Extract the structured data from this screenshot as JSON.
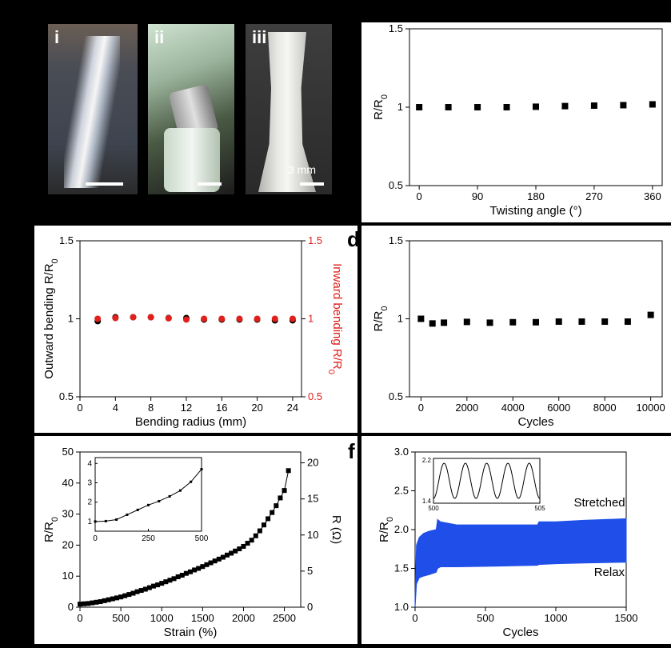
{
  "photos": [
    {
      "label": "i",
      "scale_text": ""
    },
    {
      "label": "ii",
      "scale_text": ""
    },
    {
      "label": "iii",
      "scale_text": "3 mm"
    }
  ],
  "panel_letters": {
    "d": "d",
    "f": "f"
  },
  "colors": {
    "black": "#000000",
    "red": "#e0201b",
    "blue": "#1f4fe8"
  },
  "chart_data": [
    {
      "id": "twisting",
      "type": "scatter",
      "xlabel": "Twisting angle (°)",
      "ylabel": "R/R0",
      "xlim": [
        -15,
        375
      ],
      "ylim": [
        0.5,
        1.5
      ],
      "xticks": [
        0,
        90,
        180,
        270,
        360
      ],
      "yticks": [
        0.5,
        1.0,
        1.5
      ],
      "series": [
        {
          "color": "#000000",
          "marker": "square",
          "x": [
            0,
            45,
            90,
            135,
            180,
            225,
            270,
            315,
            360
          ],
          "y": [
            1.0,
            1.0,
            1.0,
            1.0,
            1.003,
            1.007,
            1.01,
            1.013,
            1.018
          ]
        }
      ]
    },
    {
      "id": "bending",
      "type": "scatter",
      "xlabel": "Bending radius (mm)",
      "ylabel": "Outward bending R/R0",
      "y2label": "Inward bending R/R0",
      "xlim": [
        0,
        25
      ],
      "ylim": [
        0.5,
        1.5
      ],
      "xticks": [
        0,
        4,
        8,
        12,
        16,
        20,
        24
      ],
      "yticks": [
        0.5,
        1.0,
        1.5
      ],
      "series": [
        {
          "color": "#000000",
          "marker": "circle",
          "x": [
            2,
            4,
            6,
            8,
            10,
            12,
            14,
            16,
            18,
            20,
            22,
            24
          ],
          "y": [
            0.985,
            1.01,
            1.01,
            1.01,
            1.005,
            1.005,
            0.995,
            0.995,
            0.995,
            0.995,
            0.99,
            0.99
          ]
        },
        {
          "color": "#e0201b",
          "marker": "circle",
          "x": [
            2,
            4,
            6,
            8,
            10,
            12,
            14,
            16,
            18,
            20,
            22,
            24
          ],
          "y": [
            1.0,
            1.005,
            1.01,
            1.01,
            1.003,
            0.995,
            1.0,
            1.0,
            1.0,
            1.0,
            1.0,
            1.0
          ]
        }
      ]
    },
    {
      "id": "cycles",
      "type": "scatter",
      "xlabel": "Cycles",
      "ylabel": "R/R0",
      "xlim": [
        -500,
        10500
      ],
      "ylim": [
        0.5,
        1.5
      ],
      "xticks": [
        0,
        2000,
        4000,
        6000,
        8000,
        10000
      ],
      "yticks": [
        0.5,
        1.0,
        1.5
      ],
      "series": [
        {
          "color": "#000000",
          "marker": "square",
          "x": [
            0,
            500,
            1000,
            2000,
            3000,
            4000,
            5000,
            6000,
            7000,
            8000,
            9000,
            10000
          ],
          "y": [
            1.0,
            0.97,
            0.975,
            0.98,
            0.975,
            0.978,
            0.978,
            0.982,
            0.982,
            0.982,
            0.982,
            1.025
          ]
        }
      ]
    },
    {
      "id": "strain",
      "type": "line",
      "xlabel": "Strain (%)",
      "ylabel": "R/R0",
      "y2label": "R (Ω)",
      "xlim": [
        0,
        2700
      ],
      "ylim": [
        0,
        50
      ],
      "y2lim": [
        0,
        21.5
      ],
      "xticks": [
        0,
        500,
        1000,
        1500,
        2000,
        2500
      ],
      "yticks": [
        0,
        10,
        20,
        30,
        40,
        50
      ],
      "y2ticks": [
        0,
        5,
        10,
        15,
        20
      ],
      "series": [
        {
          "color": "#000000",
          "marker": "square",
          "x": [
            0,
            50,
            100,
            150,
            200,
            250,
            300,
            350,
            400,
            450,
            500,
            550,
            600,
            650,
            700,
            750,
            800,
            850,
            900,
            950,
            1000,
            1050,
            1100,
            1150,
            1200,
            1250,
            1300,
            1350,
            1400,
            1450,
            1500,
            1550,
            1600,
            1650,
            1700,
            1750,
            1800,
            1850,
            1900,
            1950,
            2000,
            2050,
            2100,
            2150,
            2200,
            2250,
            2300,
            2350,
            2400,
            2450,
            2500,
            2550
          ],
          "y": [
            1.0,
            1.1,
            1.2,
            1.4,
            1.6,
            1.8,
            2.1,
            2.4,
            2.7,
            3.0,
            3.3,
            3.7,
            4.1,
            4.5,
            5.0,
            5.4,
            5.8,
            6.3,
            6.8,
            7.2,
            7.7,
            8.2,
            8.7,
            9.2,
            9.8,
            10.3,
            10.9,
            11.4,
            12.0,
            12.5,
            13.1,
            13.7,
            14.3,
            14.9,
            15.5,
            16.1,
            16.8,
            17.4,
            18.1,
            18.8,
            19.6,
            20.6,
            21.6,
            23.0,
            24.6,
            26.5,
            28.5,
            30.5,
            32.7,
            35.2,
            37.6,
            44.0
          ]
        }
      ],
      "inset": {
        "xlim": [
          0,
          500
        ],
        "ylim": [
          0.5,
          4.3
        ],
        "xticks": [
          0,
          250,
          500
        ],
        "yticks": [
          1,
          2,
          3,
          4
        ],
        "x": [
          0,
          50,
          100,
          150,
          200,
          250,
          300,
          350,
          400,
          450,
          500
        ],
        "y": [
          1.0,
          1.02,
          1.1,
          1.35,
          1.6,
          1.85,
          2.05,
          2.3,
          2.6,
          3.05,
          3.7
        ]
      }
    },
    {
      "id": "dynamic",
      "type": "area",
      "xlabel": "Cycles",
      "ylabel": "R/R0",
      "xlim": [
        0,
        1500
      ],
      "ylim": [
        1.0,
        3.0
      ],
      "xticks": [
        0,
        500,
        1000,
        1500
      ],
      "yticks": [
        1.0,
        1.5,
        2.0,
        2.5,
        3.0
      ],
      "series": [
        {
          "color": "#1f4fe8",
          "x": [
            0,
            10,
            30,
            60,
            100,
            150,
            160,
            180,
            300,
            600,
            870,
            880,
            1000,
            1200,
            1500
          ],
          "upper": [
            1.1,
            1.8,
            1.9,
            1.95,
            1.98,
            2.0,
            2.13,
            2.1,
            2.06,
            2.06,
            2.06,
            2.1,
            2.1,
            2.12,
            2.14
          ],
          "lower": [
            1.0,
            1.3,
            1.38,
            1.4,
            1.42,
            1.45,
            1.5,
            1.52,
            1.52,
            1.53,
            1.54,
            1.55,
            1.56,
            1.57,
            1.58
          ]
        }
      ],
      "annotations": [
        {
          "text": "Stretched",
          "x": 1310,
          "y": 2.3
        },
        {
          "text": "Relax",
          "x": 1380,
          "y": 1.4
        }
      ],
      "inset": {
        "xlim": [
          500,
          505
        ],
        "ylim": [
          1.4,
          2.2
        ],
        "xticklabels": [
          "500",
          "505"
        ],
        "yticklabels": [
          "1.4",
          "2.2"
        ],
        "periods": 5
      }
    }
  ]
}
